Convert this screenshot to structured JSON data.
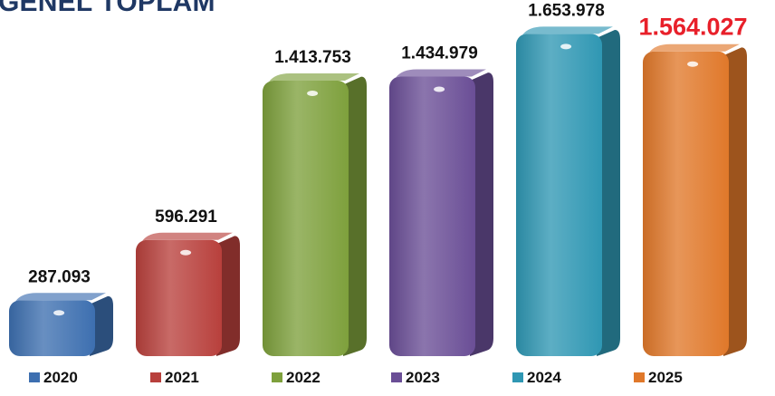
{
  "chart_data": {
    "type": "bar",
    "title": "GENEL TOPLAM",
    "xlabel": "",
    "ylabel": "",
    "ylim": [
      0,
      1700000
    ],
    "grid": false,
    "legend_position": "bottom",
    "categories": [
      "2020",
      "2021",
      "2022",
      "2023",
      "2024",
      "2025"
    ],
    "values": [
      287093,
      596291,
      1413753,
      1434979,
      1653978,
      1564027
    ],
    "data_labels": [
      "287.093",
      "596.291",
      "1.413.753",
      "1.434.979",
      "1.653.978",
      "1.564.027"
    ],
    "series": [
      {
        "name": "2020",
        "color": "#3d6fb0"
      },
      {
        "name": "2021",
        "color": "#b8403c"
      },
      {
        "name": "2022",
        "color": "#7ea03c"
      },
      {
        "name": "2023",
        "color": "#6a4e96"
      },
      {
        "name": "2024",
        "color": "#2f97b3"
      },
      {
        "name": "2025",
        "color": "#e0782a"
      }
    ],
    "highlight": {
      "category": "2025",
      "label_color": "#e8202a"
    }
  }
}
